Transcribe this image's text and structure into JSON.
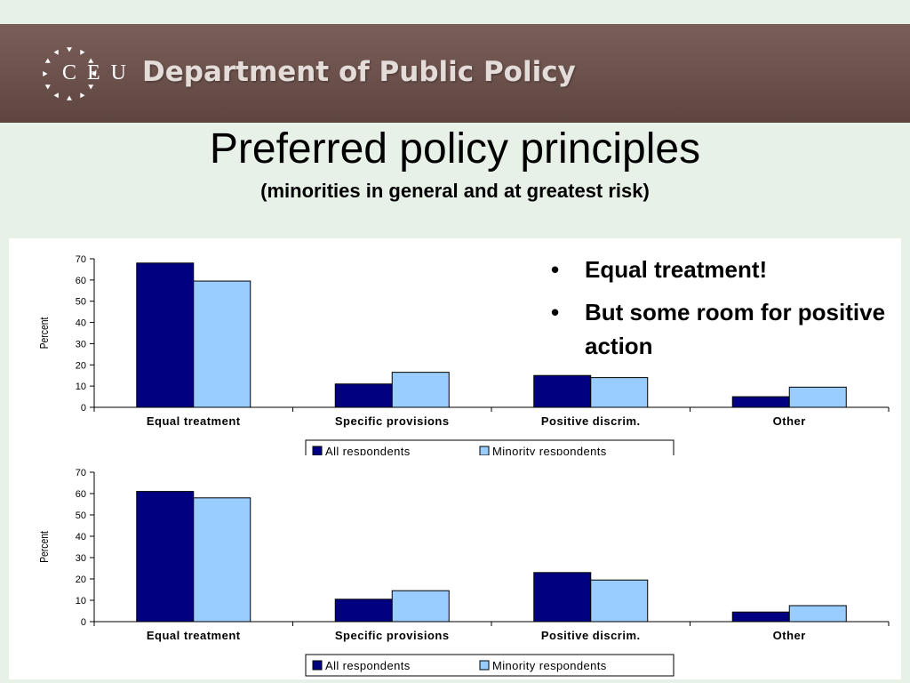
{
  "header": {
    "logo_text": "C E U",
    "department": "Department of Public Policy",
    "colors": {
      "banner": "#6d514c",
      "logo_star": "#ffffff"
    }
  },
  "slide": {
    "title": "Preferred policy principles",
    "subtitle": "(minorities in general and at greatest risk)",
    "bullets": [
      "Equal treatment!",
      "But some room for positive action"
    ]
  },
  "chart_data": [
    {
      "type": "bar",
      "categories": [
        "Equal treatment",
        "Specific provisions",
        "Positive discrim.",
        "Other"
      ],
      "series": [
        {
          "name": "All respondents",
          "values": [
            68,
            11,
            15,
            5
          ],
          "color": "#000080"
        },
        {
          "name": "Minority respondents",
          "values": [
            59.5,
            16.5,
            14,
            9.5
          ],
          "color": "#99ccff"
        }
      ],
      "ylabel": "Percent",
      "ylim": [
        0,
        70
      ],
      "yticks": [
        0,
        10,
        20,
        30,
        40,
        50,
        60,
        70
      ],
      "legend": "bottom",
      "grid": false
    },
    {
      "type": "bar",
      "categories": [
        "Equal treatment",
        "Specific provisions",
        "Positive discrim.",
        "Other"
      ],
      "series": [
        {
          "name": "All respondents",
          "values": [
            61,
            10.5,
            23,
            4.5
          ],
          "color": "#000080"
        },
        {
          "name": "Minority respondents",
          "values": [
            58,
            14.5,
            19.5,
            7.5
          ],
          "color": "#99ccff"
        }
      ],
      "ylabel": "Percent",
      "ylim": [
        0,
        70
      ],
      "yticks": [
        0,
        10,
        20,
        30,
        40,
        50,
        60,
        70
      ],
      "legend": "bottom",
      "grid": false
    }
  ]
}
